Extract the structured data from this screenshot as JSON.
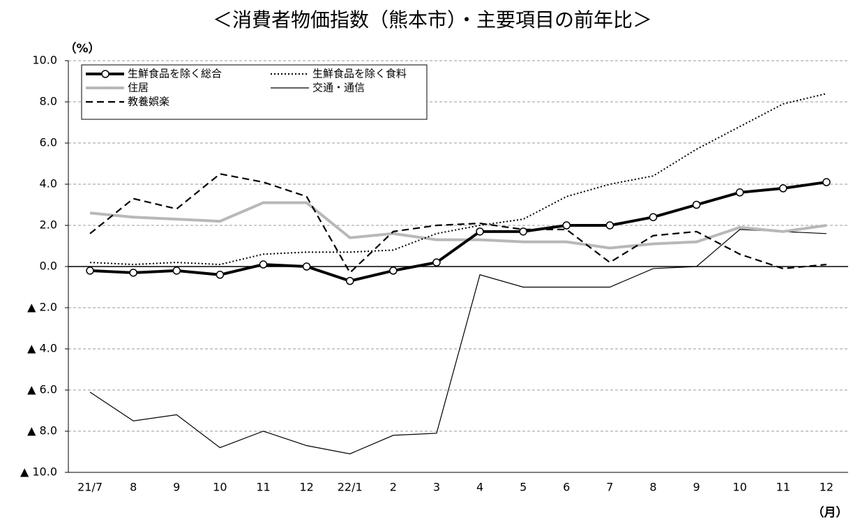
{
  "chart_data": {
    "type": "line",
    "title": "＜消費者物価指数（熊本市）・主要項目の前年比＞",
    "y_label": "（%）",
    "x_label": "（月）",
    "categories": [
      "21/7",
      "8",
      "9",
      "10",
      "11",
      "12",
      "22/1",
      "2",
      "3",
      "4",
      "5",
      "6",
      "7",
      "8",
      "9",
      "10",
      "11",
      "12"
    ],
    "ylim": [
      -10,
      10
    ],
    "yticks": [
      {
        "value": 10,
        "label": "10.0"
      },
      {
        "value": 8,
        "label": "8.0"
      },
      {
        "value": 6,
        "label": "6.0"
      },
      {
        "value": 4,
        "label": "4.0"
      },
      {
        "value": 2,
        "label": "2.0"
      },
      {
        "value": 0,
        "label": "0.0"
      },
      {
        "value": -2,
        "label": "▲ 2.0"
      },
      {
        "value": -4,
        "label": "▲ 4.0"
      },
      {
        "value": -6,
        "label": "▲ 6.0"
      },
      {
        "value": -8,
        "label": "▲ 8.0"
      },
      {
        "value": -10,
        "label": "▲ 10.0"
      }
    ],
    "grid": true,
    "legend": "upper left",
    "series": [
      {
        "name": "生鮮食品を除く総合",
        "color": "#000000",
        "style": "solid",
        "width": 4,
        "markers": true,
        "values": [
          -0.2,
          -0.3,
          -0.2,
          -0.4,
          0.1,
          0.0,
          -0.7,
          -0.2,
          0.2,
          1.7,
          1.7,
          2.0,
          2.0,
          2.4,
          3.0,
          3.6,
          3.8,
          4.1
        ]
      },
      {
        "name": "生鮮食品を除く食料",
        "color": "#000000",
        "style": "dotted",
        "width": 2,
        "markers": false,
        "values": [
          0.2,
          0.1,
          0.2,
          0.1,
          0.6,
          0.7,
          0.7,
          0.8,
          1.6,
          2.0,
          2.3,
          3.4,
          4.0,
          4.4,
          5.7,
          6.8,
          7.9,
          8.4
        ]
      },
      {
        "name": "住居",
        "color": "#b8b8b8",
        "style": "solid",
        "width": 4,
        "markers": false,
        "values": [
          2.6,
          2.4,
          2.3,
          2.2,
          3.1,
          3.1,
          1.4,
          1.6,
          1.3,
          1.3,
          1.2,
          1.2,
          0.9,
          1.1,
          1.2,
          1.9,
          1.7,
          2.0
        ]
      },
      {
        "name": "交通・通信",
        "color": "#000000",
        "style": "solid",
        "width": 1.2,
        "markers": false,
        "values": [
          -6.1,
          -7.5,
          -7.2,
          -8.8,
          -8.0,
          -8.7,
          -9.1,
          -8.2,
          -8.1,
          -0.4,
          -1.0,
          -1.0,
          -1.0,
          -0.1,
          0.0,
          1.8,
          1.7,
          1.6
        ]
      },
      {
        "name": "教養娯楽",
        "color": "#000000",
        "style": "dashed",
        "width": 2.2,
        "markers": false,
        "values": [
          1.6,
          3.3,
          2.8,
          4.5,
          4.1,
          3.4,
          -0.3,
          1.7,
          2.0,
          2.1,
          1.8,
          1.8,
          0.2,
          1.5,
          1.7,
          0.6,
          -0.1,
          0.1
        ]
      }
    ]
  }
}
